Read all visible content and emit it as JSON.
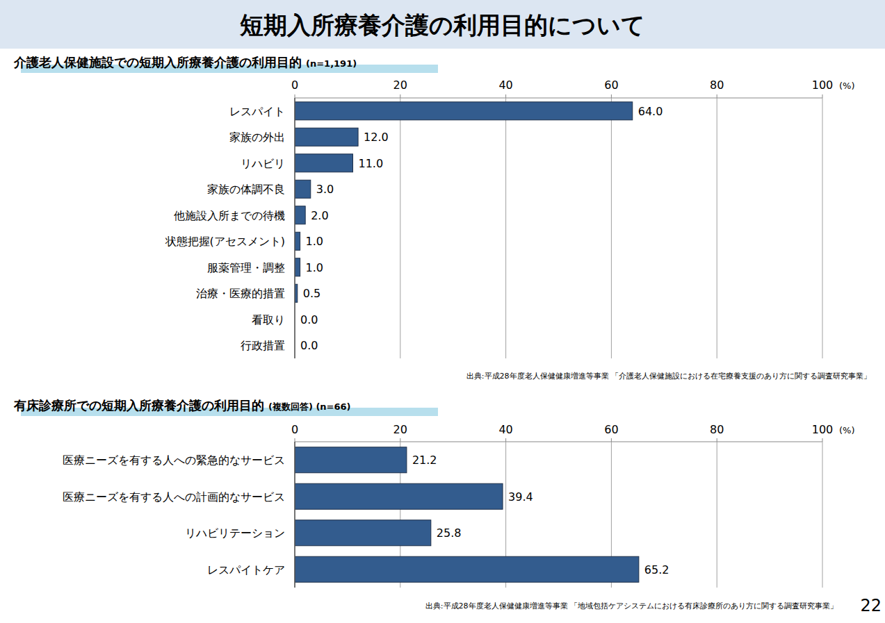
{
  "header": {
    "title": "短期入所療養介護の利用目的について"
  },
  "footer": {
    "page_number": "22"
  },
  "chart_data": [
    {
      "type": "bar",
      "orientation": "horizontal",
      "title": "介護老人保健施設での短期入所療養介護の利用目的",
      "subtitle": "(n=1,191)",
      "xlabel": "(%)",
      "categories": [
        "レスパイト",
        "家族の外出",
        "リハビリ",
        "家族の体調不良",
        "他施設入所までの待機",
        "状態把握(アセスメント)",
        "服薬管理・調整",
        "治療・医療的措置",
        "看取り",
        "行政措置"
      ],
      "values": [
        64.0,
        12.0,
        11.0,
        3.0,
        2.0,
        1.0,
        1.0,
        0.5,
        0.0,
        0.0
      ],
      "value_labels": [
        "64.0",
        "12.0",
        "11.0",
        "3.0",
        "2.0",
        "1.0",
        "1.0",
        "0.5",
        "0.0",
        "0.0"
      ],
      "color": "#335c8e",
      "xlim": [
        0,
        100
      ],
      "xticks": [
        0,
        20,
        40,
        60,
        80,
        100
      ],
      "grid": true,
      "data_labels": true,
      "source": "出典:平成28年度老人保健健康増進等事業 「介護老人保健施設における在宅療養支援のあり方に関する調査研究事業」"
    },
    {
      "type": "bar",
      "orientation": "horizontal",
      "title": "有床診療所での短期入所療養介護の利用目的",
      "subtitle": "(複数回答) (n=66)",
      "xlabel": "(%)",
      "categories": [
        "医療ニーズを有する人への緊急的なサービス",
        "医療ニーズを有する人への計画的なサービス",
        "リハビリテーション",
        "レスパイトケア"
      ],
      "values": [
        21.2,
        39.4,
        25.8,
        65.2
      ],
      "color": "#335c8e",
      "xlim": [
        0,
        100
      ],
      "xticks": [
        0,
        20,
        40,
        60,
        80,
        100
      ],
      "grid": true,
      "data_labels": true,
      "source": "出典:平成28年度老人保健健康増進等事業 「地域包括ケアシステムにおける有床診療所のあり方に関する調査研究事業」"
    }
  ]
}
